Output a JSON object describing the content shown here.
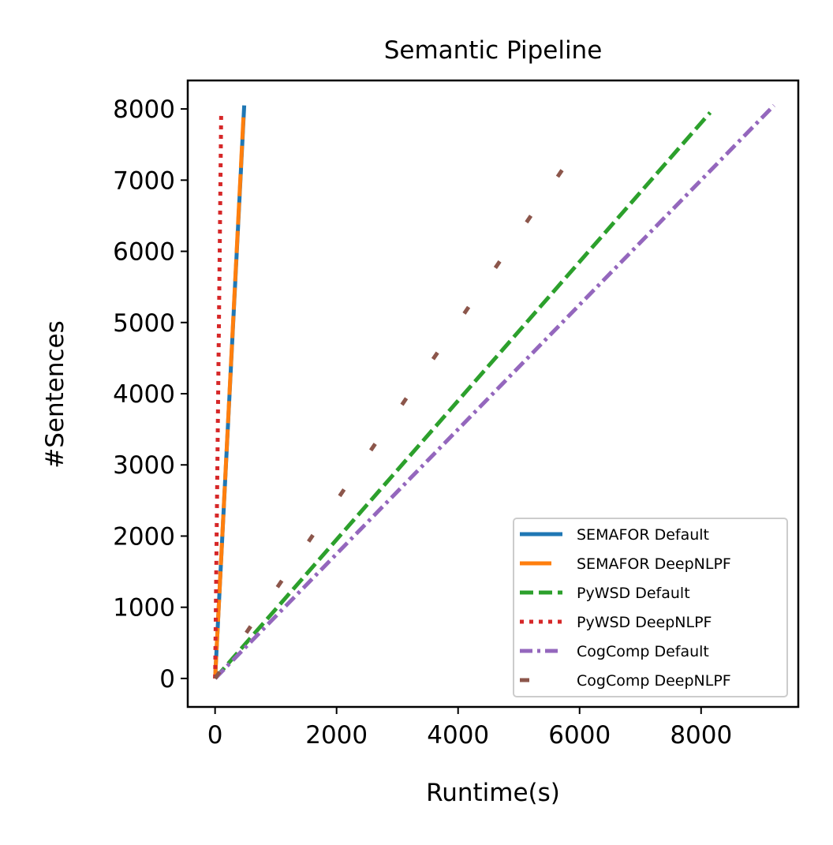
{
  "chart_data": {
    "type": "line",
    "title": "Semantic Pipeline",
    "xlabel": "Runtime(s)",
    "ylabel": "#Sentences",
    "xlim": [
      -450,
      9600
    ],
    "ylim": [
      -400,
      8400
    ],
    "xticks": [
      0,
      2000,
      4000,
      6000,
      8000
    ],
    "yticks": [
      0,
      1000,
      2000,
      3000,
      4000,
      5000,
      6000,
      7000,
      8000
    ],
    "grid": false,
    "legend_position": "lower-right",
    "series": [
      {
        "name": "SEMAFOR Default",
        "color": "#1f77b4",
        "style": "solid",
        "x": [
          0,
          480
        ],
        "y": [
          0,
          8050
        ]
      },
      {
        "name": "SEMAFOR DeepNLPF",
        "color": "#ff7f0e",
        "style": "dashed-long",
        "x": [
          0,
          470
        ],
        "y": [
          0,
          7950
        ]
      },
      {
        "name": "PyWSD Default",
        "color": "#2ca02c",
        "style": "dashed",
        "x": [
          0,
          8150
        ],
        "y": [
          0,
          7950
        ]
      },
      {
        "name": "PyWSD DeepNLPF",
        "color": "#d62728",
        "style": "dotted",
        "x": [
          0,
          100
        ],
        "y": [
          0,
          7950
        ]
      },
      {
        "name": "CogComp Default",
        "color": "#9467bd",
        "style": "dashdot",
        "x": [
          0,
          9200
        ],
        "y": [
          0,
          8050
        ]
      },
      {
        "name": "CogComp DeepNLPF",
        "color": "#8c564b",
        "style": "loosely-dashed",
        "x": [
          0,
          6000
        ],
        "y": [
          0,
          7500
        ]
      }
    ]
  }
}
